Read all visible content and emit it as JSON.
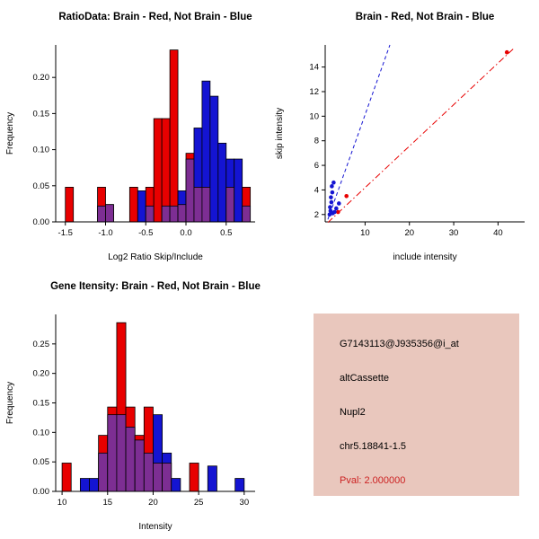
{
  "figure": {
    "background": "#ffffff",
    "red_color": "#e80000",
    "blue_color": "#1414d2",
    "overlap_color": "#7d2e93"
  },
  "chart_data": [
    {
      "name": "ratio_histogram",
      "type": "bar",
      "title": "RatioData: Brain - Red, Not Brain - Blue",
      "xlabel": "Log2 Ratio Skip/Include",
      "ylabel": "Frequency",
      "xlim": [
        -1.62,
        0.86
      ],
      "ylim": [
        0,
        0.245
      ],
      "xticks": [
        -1.5,
        -1.0,
        -0.5,
        0.0,
        0.5
      ],
      "xtick_labels": [
        "-1.5",
        "-1.0",
        "-0.5",
        "0.0",
        "0.5"
      ],
      "yticks": [
        0,
        0.05,
        0.1,
        0.15,
        0.2
      ],
      "ytick_labels": [
        "0.00",
        "0.05",
        "0.10",
        "0.15",
        "0.20"
      ],
      "bin_width": 0.1,
      "bins": [
        -1.5,
        -1.4,
        -1.3,
        -1.2,
        -1.1,
        -1.0,
        -0.9,
        -0.8,
        -0.7,
        -0.6,
        -0.5,
        -0.4,
        -0.3,
        -0.2,
        -0.1,
        0.0,
        0.1,
        0.2,
        0.3,
        0.4,
        0.5,
        0.6,
        0.7
      ],
      "series": [
        {
          "name": "Brain",
          "color": "#e80000",
          "values": [
            0.048,
            0,
            0,
            0,
            0.048,
            0.024,
            0,
            0,
            0.048,
            0,
            0.048,
            0.143,
            0.143,
            0.238,
            0.024,
            0.095,
            0.048,
            0.048,
            0,
            0,
            0.048,
            0,
            0.048
          ]
        },
        {
          "name": "Not Brain",
          "color": "#1414d2",
          "values": [
            0,
            0,
            0,
            0,
            0.022,
            0.024,
            0,
            0,
            0,
            0.043,
            0.022,
            0,
            0.022,
            0.022,
            0.043,
            0.087,
            0.13,
            0.195,
            0.174,
            0.109,
            0.087,
            0.087,
            0.022
          ]
        }
      ],
      "overlap_color": "#7d2e93",
      "grid": false
    },
    {
      "name": "intensity_scatter",
      "type": "scatter",
      "title": "Brain - Red, Not Brain - Blue",
      "xlabel": "include intensity",
      "ylabel": "skip intensity",
      "xlim": [
        1,
        46
      ],
      "ylim": [
        1.4,
        15.8
      ],
      "xticks": [
        10,
        20,
        30,
        40
      ],
      "xtick_labels": [
        "10",
        "20",
        "30",
        "40"
      ],
      "yticks": [
        2,
        4,
        6,
        8,
        10,
        12,
        14
      ],
      "ytick_labels": [
        "2",
        "4",
        "6",
        "8",
        "10",
        "12",
        "14"
      ],
      "series": [
        {
          "name": "Brain",
          "color": "#e80000",
          "points": [
            [
              3.9,
              2.2
            ],
            [
              5.8,
              3.5
            ],
            [
              42,
              15.2
            ]
          ]
        },
        {
          "name": "Not Brain",
          "color": "#1414d2",
          "points": [
            [
              2.0,
              2.0
            ],
            [
              2.2,
              2.3
            ],
            [
              2.1,
              2.6
            ],
            [
              2.4,
              3.0
            ],
            [
              2.3,
              3.4
            ],
            [
              2.6,
              3.8
            ],
            [
              2.5,
              4.3
            ],
            [
              2.9,
              4.6
            ],
            [
              3.1,
              2.2
            ],
            [
              3.5,
              2.5
            ],
            [
              4.1,
              2.9
            ],
            [
              2.7,
              2.1
            ]
          ]
        }
      ],
      "lines": [
        {
          "name": "not-brain-fit",
          "color": "#1414d2",
          "dash": "dashed",
          "x1": 1.6,
          "y1": 1.6,
          "x2": 15.6,
          "y2": 15.8
        },
        {
          "name": "brain-fit",
          "color": "#e80000",
          "dash": "dashdot",
          "x1": 1.6,
          "y1": 1.35,
          "x2": 43.5,
          "y2": 15.5
        }
      ],
      "grid": false
    },
    {
      "name": "gene_histogram",
      "type": "bar",
      "title": "Gene Itensity: Brain - Red, Not Brain - Blue",
      "xlabel": "Intensity",
      "ylabel": "Frequency",
      "xlim": [
        9.3,
        31.2
      ],
      "ylim": [
        0,
        0.3
      ],
      "xticks": [
        10,
        15,
        20,
        25,
        30
      ],
      "xtick_labels": [
        "10",
        "15",
        "20",
        "25",
        "30"
      ],
      "yticks": [
        0,
        0.05,
        0.1,
        0.15,
        0.2,
        0.25
      ],
      "ytick_labels": [
        "0.00",
        "0.05",
        "0.10",
        "0.15",
        "0.20",
        "0.25"
      ],
      "bin_width": 1,
      "bins": [
        10,
        11,
        12,
        13,
        14,
        15,
        16,
        17,
        18,
        19,
        20,
        21,
        22,
        23,
        24,
        25,
        26,
        27,
        28,
        29
      ],
      "series": [
        {
          "name": "Brain",
          "color": "#e80000",
          "values": [
            0.048,
            0,
            0,
            0,
            0.095,
            0.143,
            0.286,
            0.143,
            0.095,
            0.143,
            0.048,
            0.048,
            0,
            0,
            0.048,
            0,
            0,
            0,
            0,
            0
          ]
        },
        {
          "name": "Not Brain",
          "color": "#1414d2",
          "values": [
            0,
            0,
            0.022,
            0.022,
            0.065,
            0.13,
            0.13,
            0.109,
            0.087,
            0.065,
            0.13,
            0.065,
            0.022,
            0,
            0,
            0,
            0.043,
            0,
            0,
            0.022
          ]
        }
      ],
      "overlap_color": "#7d2e93",
      "grid": false
    }
  ],
  "info_panel": {
    "background": "#e9c7bd",
    "lines": [
      {
        "text": "G7143113@J935356@i_at",
        "color": "#000000"
      },
      {
        "text": "altCassette",
        "color": "#000000"
      },
      {
        "text": "Nupl2",
        "color": "#000000"
      },
      {
        "text": "chr5.18841-1.5",
        "color": "#000000"
      },
      {
        "text": "Pval: 2.000000",
        "color": "#cc2222"
      }
    ]
  }
}
